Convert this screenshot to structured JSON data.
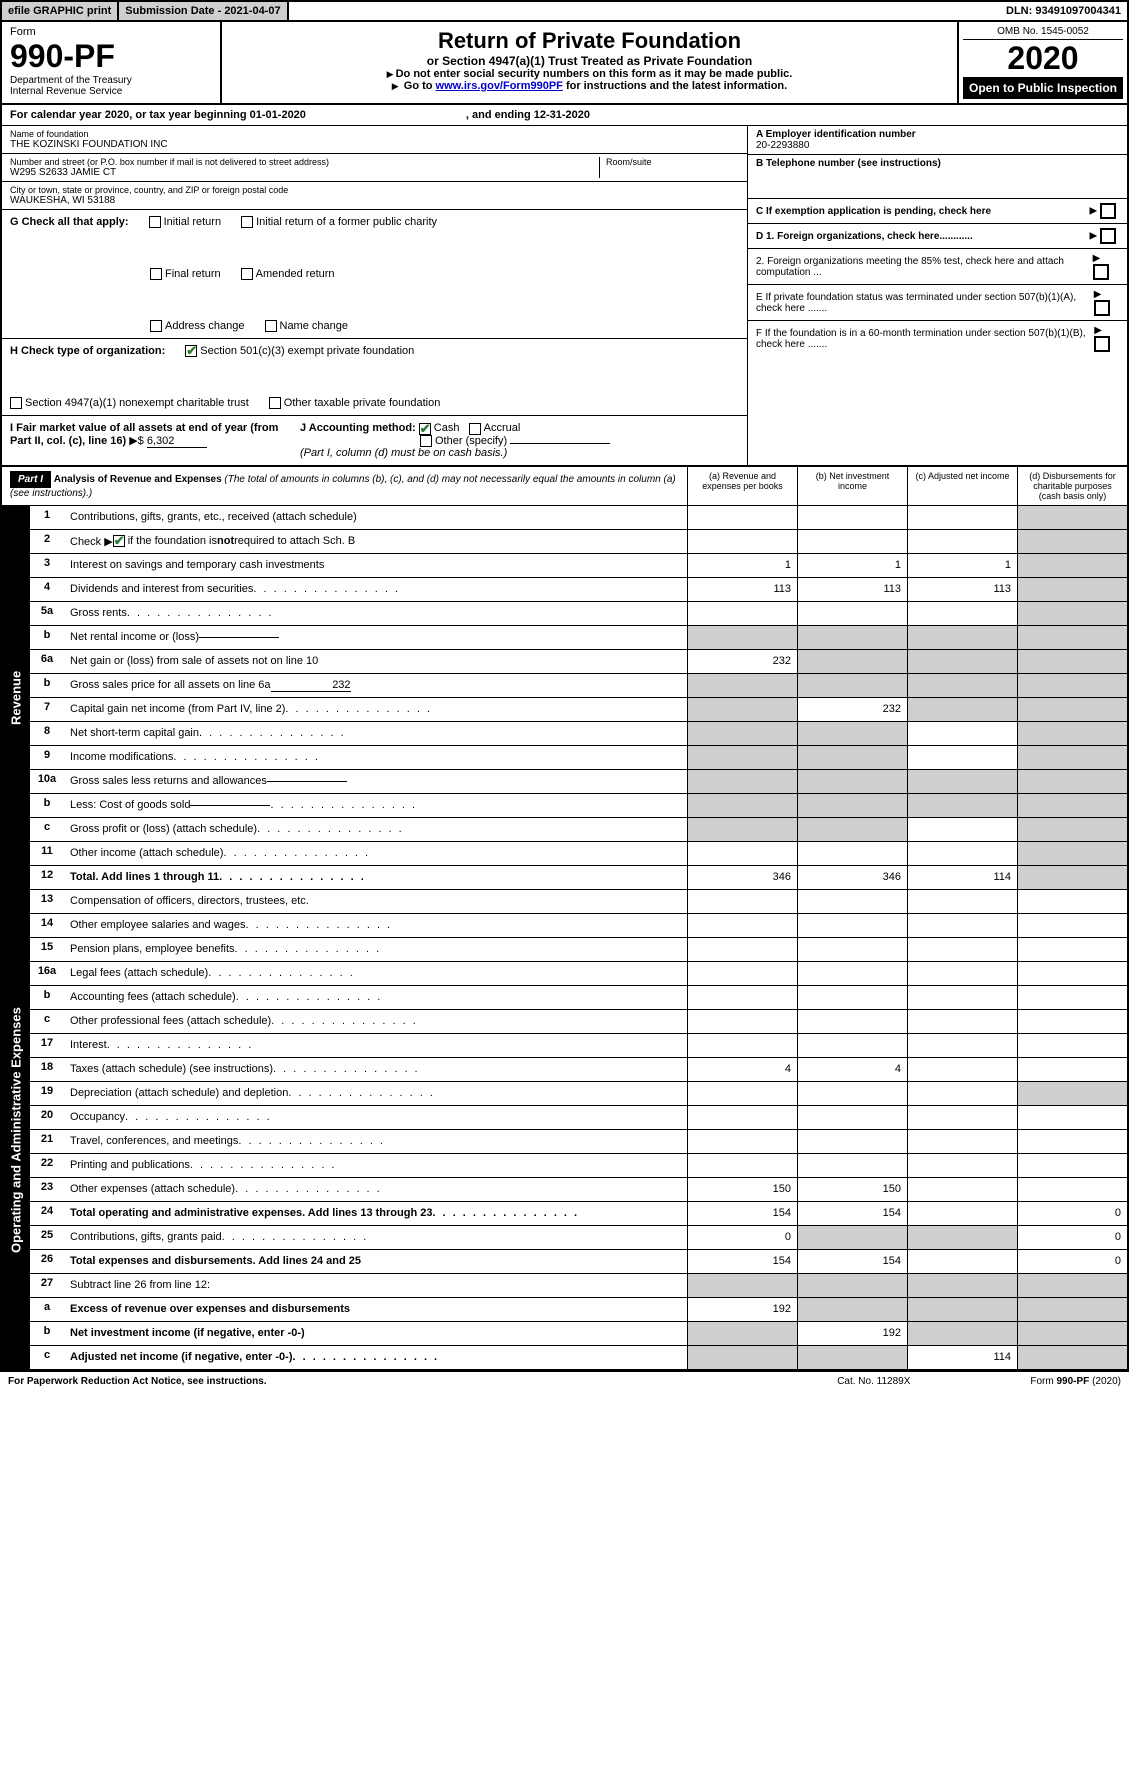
{
  "topbar": {
    "efile": "efile GRAPHIC print",
    "subdate_label": "Submission Date - 2021-04-07",
    "dln": "DLN: 93491097004341"
  },
  "header": {
    "form_label": "Form",
    "form_no": "990-PF",
    "dept": "Department of the Treasury",
    "irs": "Internal Revenue Service",
    "title": "Return of Private Foundation",
    "subtitle": "or Section 4947(a)(1) Trust Treated as Private Foundation",
    "instr1": "Do not enter social security numbers on this form as it may be made public.",
    "instr2_pre": "Go to ",
    "instr2_link": "www.irs.gov/Form990PF",
    "instr2_post": " for instructions and the latest information.",
    "omb": "OMB No. 1545-0052",
    "year": "2020",
    "open": "Open to Public Inspection"
  },
  "cal": {
    "text1": "For calendar year 2020, or tax year beginning 01-01-2020",
    "text2": ", and ending 12-31-2020"
  },
  "foundation": {
    "name_label": "Name of foundation",
    "name": "THE KOZINSKI FOUNDATION INC",
    "addr_label": "Number and street (or P.O. box number if mail is not delivered to street address)",
    "addr": "W295 S2633 JAMIE CT",
    "room_label": "Room/suite",
    "city_label": "City or town, state or province, country, and ZIP or foreign postal code",
    "city": "WAUKESHA, WI  53188",
    "ein_label": "A Employer identification number",
    "ein": "20-2293880",
    "tel_label": "B Telephone number (see instructions)",
    "c_label": "C If exemption application is pending, check here",
    "d1": "D 1. Foreign organizations, check here............",
    "d2": "2. Foreign organizations meeting the 85% test, check here and attach computation ...",
    "e": "E  If private foundation status was terminated under section 507(b)(1)(A), check here .......",
    "f": "F  If the foundation is in a 60-month termination under section 507(b)(1)(B), check here .......",
    "g_label": "G Check all that apply:",
    "g_opts": [
      "Initial return",
      "Initial return of a former public charity",
      "Final return",
      "Amended return",
      "Address change",
      "Name change"
    ],
    "h_label": "H Check type of organization:",
    "h1": "Section 501(c)(3) exempt private foundation",
    "h2": "Section 4947(a)(1) nonexempt charitable trust",
    "h3": "Other taxable private foundation",
    "i_label": "I Fair market value of all assets at end of year (from Part II, col. (c), line 16)",
    "i_val": "6,302",
    "j_label": "J Accounting method:",
    "j_cash": "Cash",
    "j_accrual": "Accrual",
    "j_other": "Other (specify)",
    "j_note": "(Part I, column (d) must be on cash basis.)"
  },
  "part1": {
    "badge": "Part I",
    "title": "Analysis of Revenue and Expenses",
    "note": "(The total of amounts in columns (b), (c), and (d) may not necessarily equal the amounts in column (a) (see instructions).)",
    "cols": {
      "a": "(a)   Revenue and expenses per books",
      "b": "(b)  Net investment income",
      "c": "(c)  Adjusted net income",
      "d": "(d)  Disbursements for charitable purposes (cash basis only)"
    }
  },
  "sections": {
    "revenue": "Revenue",
    "expenses": "Operating and Administrative Expenses"
  },
  "lines": [
    {
      "n": "1",
      "label": "Contributions, gifts, grants, etc., received (attach schedule)",
      "a": "",
      "b": "",
      "c": "",
      "d": "shade"
    },
    {
      "n": "2",
      "label": "Check ▶ ✔ if the foundation is not required to attach Sch. B",
      "a": "",
      "b": "",
      "c": "",
      "d": "shade",
      "special": "check"
    },
    {
      "n": "3",
      "label": "Interest on savings and temporary cash investments",
      "a": "1",
      "b": "1",
      "c": "1",
      "d": "shade"
    },
    {
      "n": "4",
      "label": "Dividends and interest from securities",
      "a": "113",
      "b": "113",
      "c": "113",
      "d": "shade",
      "dots": true
    },
    {
      "n": "5a",
      "label": "Gross rents",
      "a": "",
      "b": "",
      "c": "",
      "d": "shade",
      "dots": true
    },
    {
      "n": "b",
      "label": "Net rental income or (loss)",
      "a": "shade",
      "b": "shade",
      "c": "shade",
      "d": "shade",
      "inline": true
    },
    {
      "n": "6a",
      "label": "Net gain or (loss) from sale of assets not on line 10",
      "a": "232",
      "b": "shade",
      "c": "shade",
      "d": "shade"
    },
    {
      "n": "b",
      "label": "Gross sales price for all assets on line 6a",
      "a": "shade",
      "b": "shade",
      "c": "shade",
      "d": "shade",
      "inline": true,
      "inlineval": "232"
    },
    {
      "n": "7",
      "label": "Capital gain net income (from Part IV, line 2)",
      "a": "shade",
      "b": "232",
      "c": "shade",
      "d": "shade",
      "dots": true
    },
    {
      "n": "8",
      "label": "Net short-term capital gain",
      "a": "shade",
      "b": "shade",
      "c": "",
      "d": "shade",
      "dots": true
    },
    {
      "n": "9",
      "label": "Income modifications",
      "a": "shade",
      "b": "shade",
      "c": "",
      "d": "shade",
      "dots": true
    },
    {
      "n": "10a",
      "label": "Gross sales less returns and allowances",
      "a": "shade",
      "b": "shade",
      "c": "shade",
      "d": "shade",
      "inline": true
    },
    {
      "n": "b",
      "label": "Less: Cost of goods sold",
      "a": "shade",
      "b": "shade",
      "c": "shade",
      "d": "shade",
      "inline": true,
      "dots": true
    },
    {
      "n": "c",
      "label": "Gross profit or (loss) (attach schedule)",
      "a": "shade",
      "b": "shade",
      "c": "",
      "d": "shade",
      "dots": true
    },
    {
      "n": "11",
      "label": "Other income (attach schedule)",
      "a": "",
      "b": "",
      "c": "",
      "d": "shade",
      "dots": true
    },
    {
      "n": "12",
      "label": "Total. Add lines 1 through 11",
      "a": "346",
      "b": "346",
      "c": "114",
      "d": "shade",
      "bold": true,
      "dots": true
    }
  ],
  "explines": [
    {
      "n": "13",
      "label": "Compensation of officers, directors, trustees, etc.",
      "a": "",
      "b": "",
      "c": "",
      "d": ""
    },
    {
      "n": "14",
      "label": "Other employee salaries and wages",
      "a": "",
      "b": "",
      "c": "",
      "d": "",
      "dots": true
    },
    {
      "n": "15",
      "label": "Pension plans, employee benefits",
      "a": "",
      "b": "",
      "c": "",
      "d": "",
      "dots": true
    },
    {
      "n": "16a",
      "label": "Legal fees (attach schedule)",
      "a": "",
      "b": "",
      "c": "",
      "d": "",
      "dots": true
    },
    {
      "n": "b",
      "label": "Accounting fees (attach schedule)",
      "a": "",
      "b": "",
      "c": "",
      "d": "",
      "dots": true
    },
    {
      "n": "c",
      "label": "Other professional fees (attach schedule)",
      "a": "",
      "b": "",
      "c": "",
      "d": "",
      "dots": true
    },
    {
      "n": "17",
      "label": "Interest",
      "a": "",
      "b": "",
      "c": "",
      "d": "",
      "dots": true
    },
    {
      "n": "18",
      "label": "Taxes (attach schedule) (see instructions)",
      "a": "4",
      "b": "4",
      "c": "",
      "d": "",
      "dots": true
    },
    {
      "n": "19",
      "label": "Depreciation (attach schedule) and depletion",
      "a": "",
      "b": "",
      "c": "",
      "d": "shade",
      "dots": true
    },
    {
      "n": "20",
      "label": "Occupancy",
      "a": "",
      "b": "",
      "c": "",
      "d": "",
      "dots": true
    },
    {
      "n": "21",
      "label": "Travel, conferences, and meetings",
      "a": "",
      "b": "",
      "c": "",
      "d": "",
      "dots": true
    },
    {
      "n": "22",
      "label": "Printing and publications",
      "a": "",
      "b": "",
      "c": "",
      "d": "",
      "dots": true
    },
    {
      "n": "23",
      "label": "Other expenses (attach schedule)",
      "a": "150",
      "b": "150",
      "c": "",
      "d": "",
      "dots": true
    },
    {
      "n": "24",
      "label": "Total operating and administrative expenses. Add lines 13 through 23",
      "a": "154",
      "b": "154",
      "c": "",
      "d": "0",
      "bold": true,
      "dots": true
    },
    {
      "n": "25",
      "label": "Contributions, gifts, grants paid",
      "a": "0",
      "b": "shade",
      "c": "shade",
      "d": "0",
      "dots": true
    },
    {
      "n": "26",
      "label": "Total expenses and disbursements. Add lines 24 and 25",
      "a": "154",
      "b": "154",
      "c": "",
      "d": "0",
      "bold": true
    },
    {
      "n": "27",
      "label": "Subtract line 26 from line 12:",
      "a": "shade",
      "b": "shade",
      "c": "shade",
      "d": "shade"
    },
    {
      "n": "a",
      "label": "Excess of revenue over expenses and disbursements",
      "a": "192",
      "b": "shade",
      "c": "shade",
      "d": "shade",
      "bold": true
    },
    {
      "n": "b",
      "label": "Net investment income (if negative, enter -0-)",
      "a": "shade",
      "b": "192",
      "c": "shade",
      "d": "shade",
      "bold": true
    },
    {
      "n": "c",
      "label": "Adjusted net income (if negative, enter -0-)",
      "a": "shade",
      "b": "shade",
      "c": "114",
      "d": "shade",
      "bold": true,
      "dots": true
    }
  ],
  "footer": {
    "left": "For Paperwork Reduction Act Notice, see instructions.",
    "mid": "Cat. No. 11289X",
    "right": "Form 990-PF (2020)"
  }
}
